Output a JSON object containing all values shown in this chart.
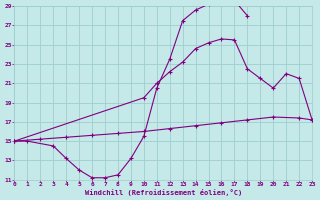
{
  "background_color": "#c5e8e8",
  "grid_color": "#9ecece",
  "line_color": "#800080",
  "xlabel": "Windchill (Refroidissement éolien,°C)",
  "xlim": [
    0,
    23
  ],
  "ylim": [
    11,
    29
  ],
  "yticks": [
    11,
    13,
    15,
    17,
    19,
    21,
    23,
    25,
    27,
    29
  ],
  "xticks": [
    0,
    1,
    2,
    3,
    4,
    5,
    6,
    7,
    8,
    9,
    10,
    11,
    12,
    13,
    14,
    15,
    16,
    17,
    18,
    19,
    20,
    21,
    22,
    23
  ],
  "line1_x": [
    0,
    1,
    3,
    4,
    5,
    6,
    7,
    8,
    9,
    10,
    11,
    12,
    13,
    14,
    15,
    16,
    17,
    18
  ],
  "line1_y": [
    15.0,
    15.0,
    14.5,
    13.2,
    12.0,
    11.2,
    11.2,
    11.5,
    13.2,
    15.5,
    20.5,
    23.5,
    27.5,
    28.6,
    29.2,
    29.4,
    29.6,
    28.0
  ],
  "line2_x": [
    0,
    2,
    4,
    6,
    8,
    10,
    12,
    14,
    16,
    18,
    20,
    22,
    23
  ],
  "line2_y": [
    15.0,
    15.2,
    15.4,
    15.6,
    15.8,
    16.0,
    16.3,
    16.6,
    16.9,
    17.2,
    17.5,
    17.4,
    17.2
  ],
  "line3_x": [
    0,
    10,
    11,
    12,
    13,
    14,
    15,
    16,
    17,
    18,
    19,
    20,
    21,
    22,
    23
  ],
  "line3_y": [
    15.0,
    19.5,
    21.0,
    22.2,
    23.2,
    24.6,
    25.2,
    25.6,
    25.5,
    22.5,
    21.5,
    20.5,
    22.0,
    21.5,
    17.2
  ]
}
